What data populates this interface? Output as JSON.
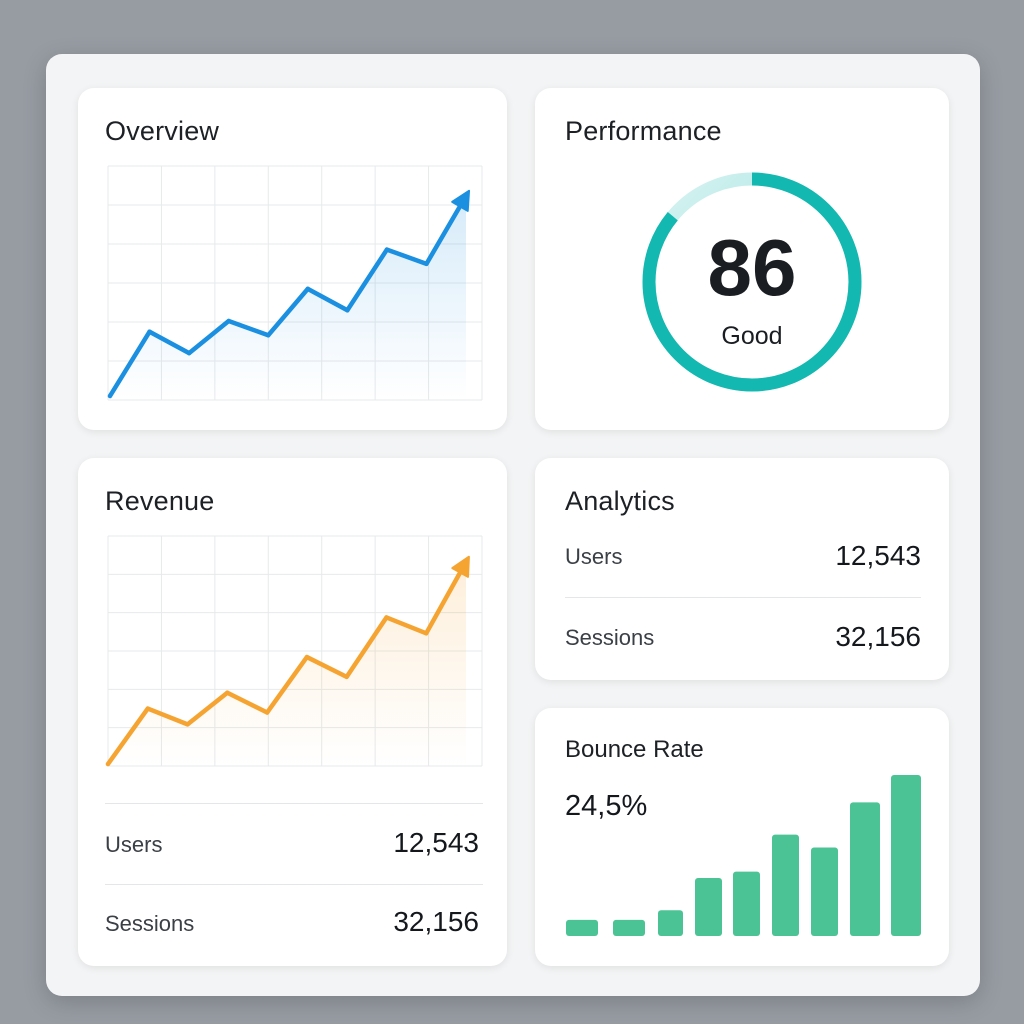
{
  "overview": {
    "title": "Overview",
    "line_color": "#1b8fe0",
    "chart_data": {
      "type": "line",
      "values": [
        0,
        1.8,
        1.2,
        2.1,
        1.7,
        3.0,
        2.4,
        4.1,
        3.7,
        5.6
      ]
    }
  },
  "performance": {
    "title": "Performance",
    "score": "86",
    "score_value": 86,
    "score_max": 100,
    "status": "Good",
    "ring_color": "#13b8b0"
  },
  "revenue": {
    "title": "Revenue",
    "line_color": "#f5a431",
    "chart_data": {
      "type": "line",
      "values": [
        0,
        1.4,
        1.0,
        1.8,
        1.3,
        2.7,
        2.2,
        3.7,
        3.3,
        5.1
      ]
    },
    "stats": [
      {
        "label": "Users",
        "value": "12,543"
      },
      {
        "label": "Sessions",
        "value": "32,156"
      }
    ]
  },
  "analytics": {
    "title": "Analytics",
    "stats": [
      {
        "label": "Users",
        "value": "12,543"
      },
      {
        "label": "Sessions",
        "value": "32,156"
      }
    ]
  },
  "bounce_rate": {
    "title": "Bounce Rate",
    "value": "24,5%",
    "bar_color": "#4cc394",
    "chart_data": {
      "type": "bar",
      "values": [
        1.0,
        1.0,
        1.6,
        3.6,
        4.0,
        6.3,
        5.5,
        8.3,
        10.0
      ]
    }
  }
}
